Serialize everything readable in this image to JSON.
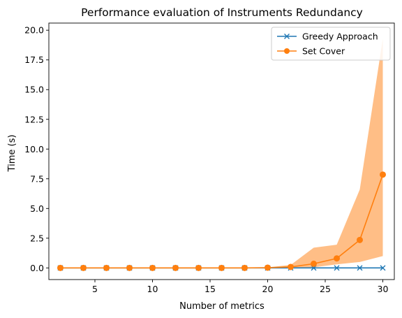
{
  "chart_data": {
    "type": "line",
    "title": "Performance evaluation of Instruments Redundancy",
    "xlabel": "Number of metrics",
    "ylabel": "Time (s)",
    "xlim": [
      1,
      31
    ],
    "ylim": [
      -0.98,
      20.6
    ],
    "xticks": [
      5,
      10,
      15,
      20,
      25,
      30
    ],
    "yticks": [
      0.0,
      2.5,
      5.0,
      7.5,
      10.0,
      12.5,
      15.0,
      17.5,
      20.0
    ],
    "ytick_labels": [
      "0.0",
      "2.5",
      "5.0",
      "7.5",
      "10.0",
      "12.5",
      "15.0",
      "17.5",
      "20.0"
    ],
    "legend_position": "upper right",
    "x": [
      2,
      4,
      6,
      8,
      10,
      12,
      14,
      16,
      18,
      20,
      22,
      24,
      26,
      28,
      30
    ],
    "series": [
      {
        "name": "Greedy Approach",
        "color": "#1f77b4",
        "marker": "x",
        "values": [
          0,
          0,
          0,
          0,
          0,
          0,
          0,
          0,
          0,
          0,
          0,
          0,
          0,
          0,
          0
        ]
      },
      {
        "name": "Set Cover",
        "color": "#ff7f0e",
        "marker": "o",
        "values": [
          0,
          0,
          0,
          0,
          0,
          0,
          0,
          0,
          0,
          0.02,
          0.08,
          0.35,
          0.8,
          2.35,
          7.85
        ],
        "band_lower": [
          0,
          0,
          0,
          0,
          0,
          0,
          0,
          0,
          0,
          0,
          0,
          0.05,
          0.3,
          0.5,
          1.0
        ],
        "band_upper": [
          0,
          0,
          0,
          0,
          0,
          0,
          0,
          0,
          0,
          0.05,
          0.25,
          1.7,
          1.95,
          6.6,
          19.3
        ],
        "band_color": "#ffbe86"
      }
    ]
  }
}
